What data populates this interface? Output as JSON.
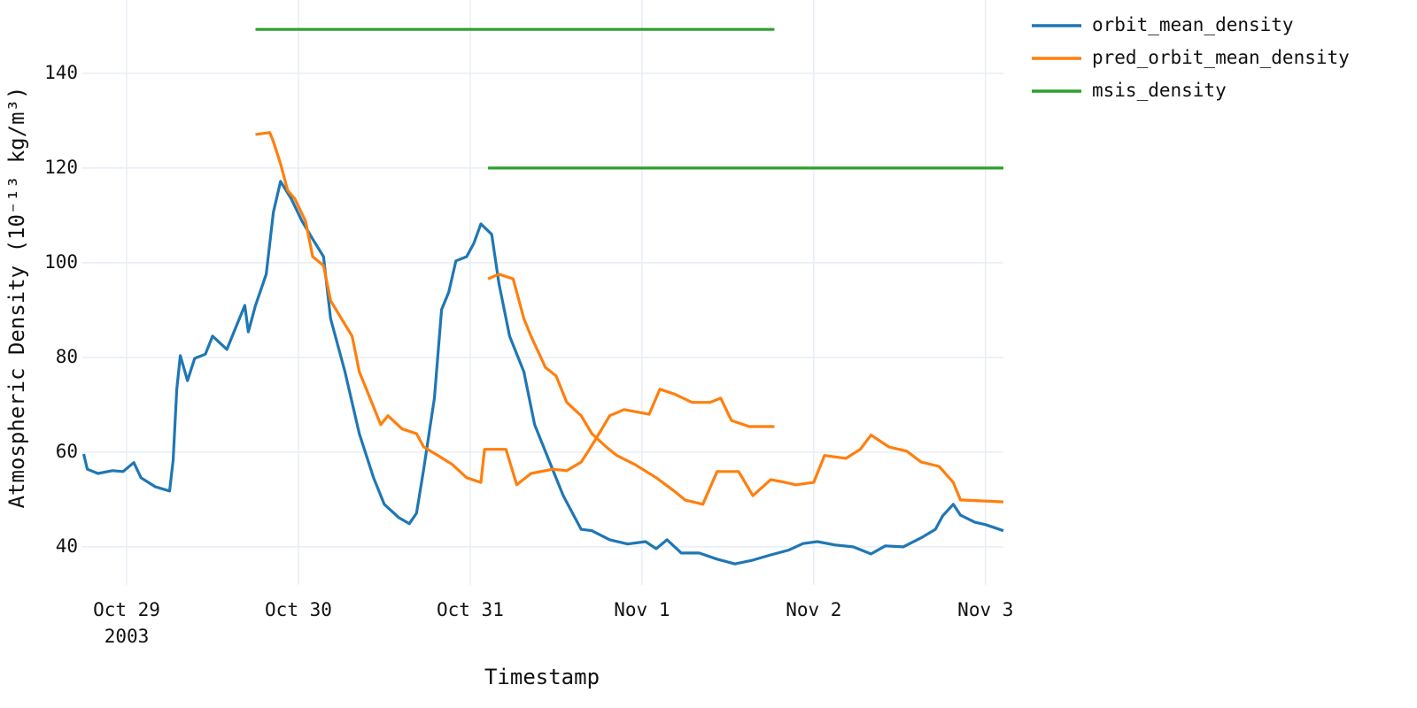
{
  "chart_data": {
    "type": "line",
    "x_label": "Timestamp",
    "y_label": "Atmospheric Density (10⁻¹³ kg/m³)",
    "xlim": [
      "2003-10-28T17:45",
      "2003-11-03T02:30"
    ],
    "ylim": [
      32,
      155.5
    ],
    "xticks": [
      {
        "value": "2003-10-29T00:00",
        "label": "Oct 29"
      },
      {
        "value": "2003-10-30T00:00",
        "label": "Oct 30"
      },
      {
        "value": "2003-10-31T00:00",
        "label": "Oct 31"
      },
      {
        "value": "2003-11-01T00:00",
        "label": "Nov 1"
      },
      {
        "value": "2003-11-02T00:00",
        "label": "Nov 2"
      },
      {
        "value": "2003-11-03T00:00",
        "label": "Nov 3"
      }
    ],
    "xtick_year": "2003",
    "yticks": [
      40,
      60,
      80,
      100,
      120,
      140
    ],
    "grid": true,
    "legend": "top-right",
    "series": [
      {
        "name": "orbit_mean_density",
        "color": "#1f77b4",
        "x": [
          "2003-10-28T18:00",
          "2003-10-28T18:30",
          "2003-10-28T20:00",
          "2003-10-28T22:00",
          "2003-10-28T23:30",
          "2003-10-29T01:00",
          "2003-10-29T02:00",
          "2003-10-29T04:00",
          "2003-10-29T06:00",
          "2003-10-29T06:30",
          "2003-10-29T07:00",
          "2003-10-29T07:30",
          "2003-10-29T08:30",
          "2003-10-29T09:30",
          "2003-10-29T11:00",
          "2003-10-29T12:00",
          "2003-10-29T14:00",
          "2003-10-29T15:00",
          "2003-10-29T16:30",
          "2003-10-29T17:00",
          "2003-10-29T18:00",
          "2003-10-29T19:30",
          "2003-10-29T20:30",
          "2003-10-29T21:30",
          "2003-10-29T23:00",
          "2003-10-30T00:30",
          "2003-10-30T02:00",
          "2003-10-30T03:30",
          "2003-10-30T04:30",
          "2003-10-30T06:30",
          "2003-10-30T08:30",
          "2003-10-30T10:30",
          "2003-10-30T12:00",
          "2003-10-30T14:00",
          "2003-10-30T15:30",
          "2003-10-30T16:30",
          "2003-10-30T17:30",
          "2003-10-30T19:00",
          "2003-10-30T20:00",
          "2003-10-30T21:00",
          "2003-10-30T22:00",
          "2003-10-30T23:30",
          "2003-10-31T00:30",
          "2003-10-31T01:30",
          "2003-10-31T03:00",
          "2003-10-31T04:00",
          "2003-10-31T05:30",
          "2003-10-31T07:30",
          "2003-10-31T09:00",
          "2003-10-31T11:00",
          "2003-10-31T13:00",
          "2003-10-31T15:30",
          "2003-10-31T17:00",
          "2003-10-31T19:30",
          "2003-10-31T22:00",
          "2003-11-01T00:30",
          "2003-11-01T02:00",
          "2003-11-01T03:30",
          "2003-11-01T05:30",
          "2003-11-01T08:00",
          "2003-11-01T10:30",
          "2003-11-01T13:00",
          "2003-11-01T15:30",
          "2003-11-01T18:00",
          "2003-11-01T20:30",
          "2003-11-01T22:30",
          "2003-11-02T00:30",
          "2003-11-02T03:00",
          "2003-11-02T05:30",
          "2003-11-02T08:00",
          "2003-11-02T10:00",
          "2003-11-02T12:30",
          "2003-11-02T15:00",
          "2003-11-02T17:00",
          "2003-11-02T18:00",
          "2003-11-02T19:30",
          "2003-11-02T20:30",
          "2003-11-02T22:30",
          "2003-11-03T00:00",
          "2003-11-03T02:30"
        ],
        "values": [
          59.6,
          56.4,
          55.5,
          56.1,
          55.9,
          57.8,
          54.6,
          52.7,
          51.8,
          58.3,
          73.3,
          80.4,
          75.1,
          79.8,
          80.7,
          84.5,
          81.7,
          85.4,
          91.0,
          85.4,
          91.0,
          97.6,
          110.7,
          117.2,
          113.5,
          108.8,
          105.0,
          101.3,
          88.2,
          77.0,
          63.9,
          54.6,
          49.0,
          46.2,
          44.9,
          47.1,
          56.4,
          71.4,
          90.1,
          93.8,
          100.4,
          101.3,
          104.1,
          108.2,
          106.0,
          95.7,
          84.5,
          77.0,
          65.8,
          58.3,
          50.8,
          43.7,
          43.4,
          41.5,
          40.6,
          41.1,
          39.6,
          41.5,
          38.7,
          38.7,
          37.4,
          36.4,
          37.2,
          38.3,
          39.3,
          40.7,
          41.1,
          40.4,
          40.0,
          38.5,
          40.2,
          40.0,
          41.9,
          43.7,
          46.5,
          49.0,
          46.7,
          45.2,
          44.7,
          43.4
        ]
      },
      {
        "name": "pred_orbit_mean_density",
        "color": "#ff7f0e",
        "x": [
          "2003-10-29T18:00",
          "2003-10-29T20:00",
          "2003-10-29T20:30",
          "2003-10-29T21:30",
          "2003-10-29T22:30",
          "2003-10-29T23:30",
          "2003-10-30T01:00",
          "2003-10-30T02:00",
          "2003-10-30T03:30",
          "2003-10-30T04:30",
          "2003-10-30T06:00",
          "2003-10-30T07:30",
          "2003-10-30T08:30",
          "2003-10-30T10:00",
          "2003-10-30T11:30",
          "2003-10-30T12:30",
          "2003-10-30T14:30",
          "2003-10-30T16:30",
          "2003-10-30T17:30",
          "2003-10-30T19:30",
          "2003-10-30T21:30",
          "2003-10-30T23:30",
          "2003-10-31T01:30",
          "2003-10-31T02:00",
          "2003-10-31T05:00",
          "2003-10-31T06:30",
          "2003-10-31T08:30",
          "2003-10-31T11:30",
          "2003-10-31T13:30",
          "2003-10-31T15:30",
          "2003-10-31T16:30",
          "2003-10-31T18:00",
          "2003-10-31T19:30",
          "2003-10-31T21:30",
          "2003-11-01T01:00",
          "2003-11-01T02:30",
          "2003-11-01T04:30",
          "2003-11-01T07:00",
          "2003-11-01T09:30",
          "2003-11-01T11:00",
          "2003-11-01T12:30",
          "2003-11-01T15:00",
          "2003-11-01T18:30",
          null,
          "2003-10-31T02:30",
          "2003-10-31T04:00",
          "2003-10-31T06:00",
          "2003-10-31T07:30",
          "2003-10-31T08:30",
          "2003-10-31T10:30",
          "2003-10-31T12:00",
          "2003-10-31T13:30",
          "2003-10-31T15:30",
          "2003-10-31T17:00",
          "2003-10-31T19:00",
          "2003-10-31T20:30",
          "2003-10-31T23:00",
          "2003-11-01T02:00",
          "2003-11-01T04:30",
          "2003-11-01T06:00",
          "2003-11-01T08:30",
          "2003-11-01T10:30",
          "2003-11-01T13:30",
          "2003-11-01T15:30",
          "2003-11-01T18:00",
          "2003-11-01T20:00",
          "2003-11-01T21:30",
          "2003-11-02T00:00",
          "2003-11-02T01:30",
          "2003-11-02T04:30",
          "2003-11-02T06:30",
          "2003-11-02T08:00",
          "2003-11-02T10:30",
          "2003-11-02T13:00",
          "2003-11-02T15:00",
          "2003-11-02T17:30",
          "2003-11-02T19:30",
          "2003-11-02T20:30",
          "2003-11-03T02:30"
        ],
        "values": [
          127.1,
          127.5,
          125.6,
          120.9,
          115.3,
          113.5,
          108.8,
          101.3,
          99.4,
          92.0,
          88.2,
          84.5,
          77.0,
          71.4,
          65.8,
          67.7,
          64.9,
          63.9,
          61.1,
          59.3,
          57.4,
          54.6,
          53.6,
          60.6,
          60.6,
          53.1,
          55.5,
          56.4,
          56.1,
          57.9,
          60.2,
          63.9,
          67.7,
          69.0,
          68.0,
          73.3,
          72.3,
          70.5,
          70.5,
          71.4,
          66.7,
          65.4,
          65.4,
          null,
          96.6,
          97.6,
          96.6,
          88.2,
          84.5,
          77.9,
          76.1,
          70.5,
          67.7,
          63.9,
          61.1,
          59.3,
          57.4,
          54.6,
          51.8,
          49.9,
          49.0,
          55.9,
          55.9,
          50.8,
          54.2,
          53.6,
          53.1,
          53.6,
          59.3,
          58.7,
          60.6,
          63.6,
          61.1,
          60.2,
          57.9,
          57.0,
          53.6,
          49.9,
          49.5
        ]
      },
      {
        "name": "msis_density",
        "color": "#2ca02c",
        "x": [
          "2003-10-29T18:00",
          "2003-11-01T18:30",
          null,
          "2003-10-31T02:30",
          "2003-11-03T02:30"
        ],
        "values": [
          149.3,
          149.3,
          null,
          120.0,
          120.0
        ]
      }
    ]
  }
}
